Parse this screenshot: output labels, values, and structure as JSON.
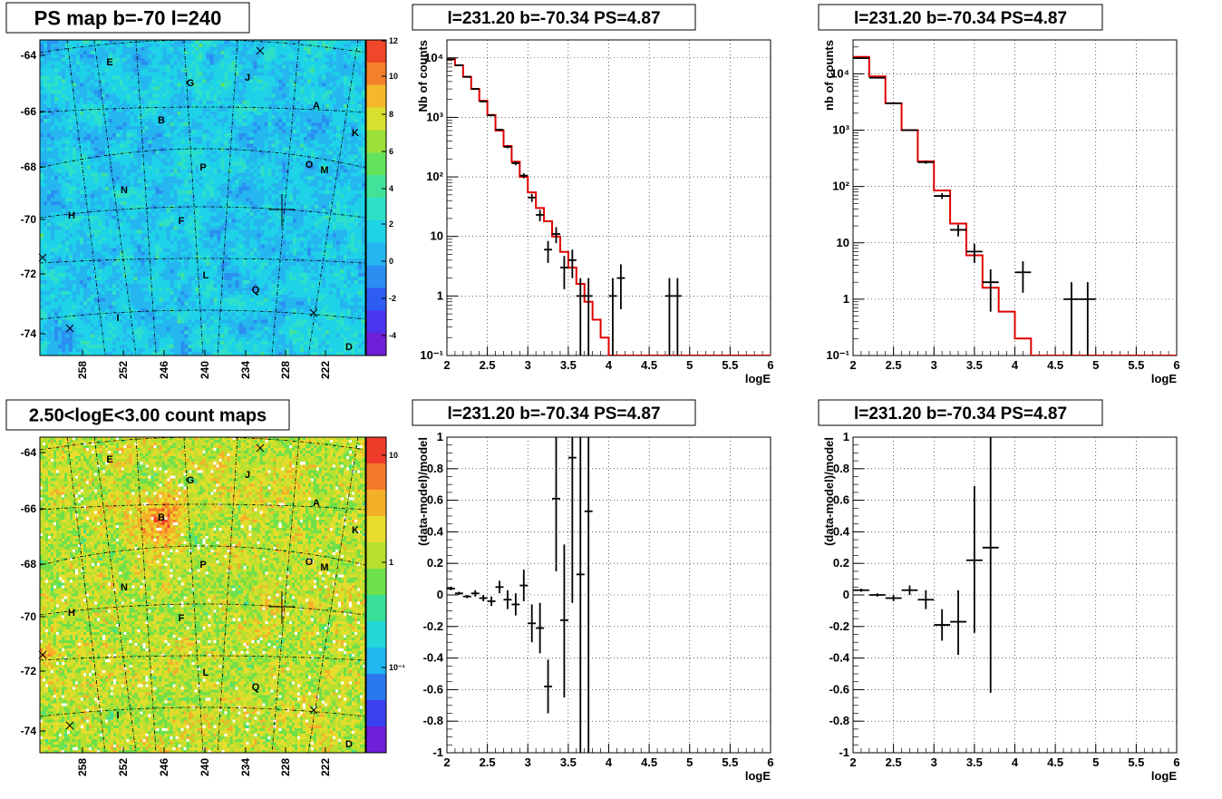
{
  "panels": {
    "map_top": {
      "title": "PS map b=-70 l=240",
      "lat_ticks": [
        "-64",
        "-66",
        "-68",
        "-70",
        "-72",
        "-74"
      ],
      "lon_ticks": [
        "258",
        "252",
        "246",
        "240",
        "234",
        "228",
        "222"
      ],
      "colorbar_ticks": [
        "12",
        "10",
        "8",
        "6",
        "4",
        "2",
        "0",
        "-2",
        "-4"
      ],
      "labels": [
        "E",
        "G",
        "J",
        "A",
        "B",
        "K",
        "P",
        "O",
        "M",
        "N",
        "H",
        "F",
        "L",
        "Q",
        "I",
        "D"
      ]
    },
    "map_bottom": {
      "title": "2.50<logE<3.00 count maps",
      "lat_ticks": [
        "-64",
        "-66",
        "-68",
        "-70",
        "-72",
        "-74"
      ],
      "lon_ticks": [
        "258",
        "252",
        "246",
        "240",
        "234",
        "228",
        "222"
      ],
      "colorbar_ticks": [
        "10",
        "1",
        "10⁻¹"
      ],
      "labels": [
        "E",
        "G",
        "J",
        "A",
        "B",
        "K",
        "P",
        "O",
        "M",
        "N",
        "H",
        "F",
        "L",
        "Q",
        "I",
        "D"
      ]
    }
  },
  "chart_data": [
    {
      "type": "line",
      "panel": "spectrum-left",
      "title": "l=231.20 b=-70.34 PS=4.87",
      "xlabel": "logE",
      "ylabel": "Nb of counts",
      "xlim": [
        2,
        6
      ],
      "ylim": [
        0.1,
        20000
      ],
      "log_y": true,
      "grid": true,
      "x_ticks": [
        "2",
        "2.5",
        "3",
        "3.5",
        "4",
        "4.5",
        "5",
        "5.5",
        "6"
      ],
      "y_ticks": [
        "10⁻¹",
        "1",
        "10",
        "10²",
        "10³",
        "10⁴"
      ],
      "model_edges": [
        2.0,
        2.1,
        2.2,
        2.3,
        2.4,
        2.5,
        2.6,
        2.7,
        2.8,
        2.9,
        3.0,
        3.1,
        3.2,
        3.3,
        3.4,
        3.5,
        3.6,
        3.7,
        3.8,
        3.9,
        4.0,
        6.0
      ],
      "model_values": [
        9500,
        7500,
        4800,
        3000,
        1900,
        1100,
        600,
        330,
        180,
        100,
        55,
        30,
        18,
        10,
        5.5,
        3,
        1.6,
        0.8,
        0.4,
        0.2,
        0.1
      ],
      "data_points": [
        {
          "x": 2.05,
          "y": 9500,
          "lo": 9400,
          "hi": 9600,
          "w": 0.05
        },
        {
          "x": 2.15,
          "y": 7500,
          "lo": 7400,
          "hi": 7600,
          "w": 0.05
        },
        {
          "x": 2.25,
          "y": 4800,
          "lo": 4700,
          "hi": 4900,
          "w": 0.05
        },
        {
          "x": 2.35,
          "y": 3000,
          "lo": 2950,
          "hi": 3050,
          "w": 0.05
        },
        {
          "x": 2.45,
          "y": 1850,
          "lo": 1800,
          "hi": 1900,
          "w": 0.05
        },
        {
          "x": 2.55,
          "y": 1080,
          "lo": 1050,
          "hi": 1110,
          "w": 0.05
        },
        {
          "x": 2.65,
          "y": 620,
          "lo": 595,
          "hi": 645,
          "w": 0.05
        },
        {
          "x": 2.75,
          "y": 320,
          "lo": 302,
          "hi": 338,
          "w": 0.05
        },
        {
          "x": 2.85,
          "y": 170,
          "lo": 157,
          "hi": 183,
          "w": 0.05
        },
        {
          "x": 2.95,
          "y": 105,
          "lo": 95,
          "hi": 115,
          "w": 0.05
        },
        {
          "x": 3.05,
          "y": 45,
          "lo": 38,
          "hi": 52,
          "w": 0.05
        },
        {
          "x": 3.15,
          "y": 23,
          "lo": 18,
          "hi": 28,
          "w": 0.05
        },
        {
          "x": 3.25,
          "y": 6,
          "lo": 3.6,
          "hi": 8.4,
          "w": 0.05
        },
        {
          "x": 3.35,
          "y": 11,
          "lo": 7.7,
          "hi": 14.3,
          "w": 0.05
        },
        {
          "x": 3.45,
          "y": 3,
          "lo": 1.3,
          "hi": 4.7,
          "w": 0.05
        },
        {
          "x": 3.55,
          "y": 4,
          "lo": 2,
          "hi": 6,
          "w": 0.05
        },
        {
          "x": 3.65,
          "y": 1,
          "lo": 0.1,
          "hi": 2,
          "w": 0.05
        },
        {
          "x": 3.75,
          "y": 1,
          "lo": 0.1,
          "hi": 2,
          "w": 0.05
        },
        {
          "x": 4.05,
          "y": 1,
          "lo": 0.1,
          "hi": 2,
          "w": 0.05
        },
        {
          "x": 4.15,
          "y": 2,
          "lo": 0.6,
          "hi": 3.4,
          "w": 0.05
        },
        {
          "x": 4.75,
          "y": 1,
          "lo": 0.1,
          "hi": 2,
          "w": 0.05
        },
        {
          "x": 4.85,
          "y": 1,
          "lo": 0.1,
          "hi": 2,
          "w": 0.05
        }
      ]
    },
    {
      "type": "line",
      "panel": "spectrum-right",
      "title": "l=231.20 b=-70.34 PS=4.87",
      "xlabel": "logE",
      "ylabel": "nb of counts",
      "xlim": [
        2,
        6
      ],
      "ylim": [
        0.1,
        40000
      ],
      "log_y": true,
      "grid": true,
      "x_ticks": [
        "2",
        "2.5",
        "3",
        "3.5",
        "4",
        "4.5",
        "5",
        "5.5",
        "6"
      ],
      "y_ticks": [
        "10⁻¹",
        "1",
        "10",
        "10²",
        "10³",
        "10⁴"
      ],
      "model_edges": [
        2.0,
        2.2,
        2.4,
        2.6,
        2.8,
        3.0,
        3.2,
        3.4,
        3.6,
        3.8,
        4.0,
        4.2,
        6.0
      ],
      "model_values": [
        20000,
        9000,
        3000,
        1000,
        280,
        85,
        22,
        6,
        1.6,
        0.6,
        0.2,
        0.1
      ],
      "data_points": [
        {
          "x": 2.1,
          "y": 19000,
          "lo": 18860,
          "hi": 19140,
          "w": 0.1
        },
        {
          "x": 2.3,
          "y": 8500,
          "lo": 8410,
          "hi": 8590,
          "w": 0.1
        },
        {
          "x": 2.5,
          "y": 3000,
          "lo": 2945,
          "hi": 3055,
          "w": 0.1
        },
        {
          "x": 2.7,
          "y": 1000,
          "lo": 968,
          "hi": 1032,
          "w": 0.1
        },
        {
          "x": 2.9,
          "y": 270,
          "lo": 254,
          "hi": 286,
          "w": 0.1
        },
        {
          "x": 3.1,
          "y": 68,
          "lo": 60,
          "hi": 76,
          "w": 0.1
        },
        {
          "x": 3.3,
          "y": 17,
          "lo": 13,
          "hi": 21,
          "w": 0.1
        },
        {
          "x": 3.5,
          "y": 7,
          "lo": 4.4,
          "hi": 9.6,
          "w": 0.1
        },
        {
          "x": 3.7,
          "y": 2,
          "lo": 0.6,
          "hi": 3.4,
          "w": 0.1
        },
        {
          "x": 4.1,
          "y": 3,
          "lo": 1.3,
          "hi": 4.7,
          "w": 0.1
        },
        {
          "x": 4.7,
          "y": 1,
          "lo": 0.1,
          "hi": 2,
          "w": 0.1
        },
        {
          "x": 4.9,
          "y": 1,
          "lo": 0.1,
          "hi": 2,
          "w": 0.1
        }
      ]
    },
    {
      "type": "scatter",
      "panel": "residual-left",
      "title": "l=231.20 b=-70.34 PS=4.87",
      "xlabel": "logE",
      "ylabel": "(data-model)/model",
      "xlim": [
        2,
        6
      ],
      "ylim": [
        -1,
        1
      ],
      "grid": true,
      "x_ticks": [
        "2",
        "2.5",
        "3",
        "3.5",
        "4",
        "4.5",
        "5",
        "5.5",
        "6"
      ],
      "y_ticks": [
        "-1",
        "-0.8",
        "-0.6",
        "-0.4",
        "-0.2",
        "0",
        "0.2",
        "0.4",
        "0.6",
        "0.8",
        "1"
      ],
      "data_points": [
        {
          "x": 2.05,
          "y": 0.04,
          "lo": 0.03,
          "hi": 0.05,
          "w": 0.05
        },
        {
          "x": 2.15,
          "y": 0.01,
          "lo": 0.0,
          "hi": 0.02,
          "w": 0.05
        },
        {
          "x": 2.25,
          "y": -0.01,
          "lo": -0.02,
          "hi": 0.0,
          "w": 0.05
        },
        {
          "x": 2.35,
          "y": 0.01,
          "lo": -0.01,
          "hi": 0.03,
          "w": 0.05
        },
        {
          "x": 2.45,
          "y": -0.02,
          "lo": -0.04,
          "hi": 0.0,
          "w": 0.05
        },
        {
          "x": 2.55,
          "y": -0.04,
          "lo": -0.07,
          "hi": -0.01,
          "w": 0.05
        },
        {
          "x": 2.65,
          "y": 0.05,
          "lo": 0.01,
          "hi": 0.09,
          "w": 0.05
        },
        {
          "x": 2.75,
          "y": -0.03,
          "lo": -0.09,
          "hi": 0.03,
          "w": 0.05
        },
        {
          "x": 2.85,
          "y": -0.06,
          "lo": -0.13,
          "hi": 0.01,
          "w": 0.05
        },
        {
          "x": 2.95,
          "y": 0.06,
          "lo": -0.04,
          "hi": 0.16,
          "w": 0.05
        },
        {
          "x": 3.05,
          "y": -0.18,
          "lo": -0.3,
          "hi": -0.06,
          "w": 0.05
        },
        {
          "x": 3.15,
          "y": -0.21,
          "lo": -0.37,
          "hi": -0.05,
          "w": 0.05
        },
        {
          "x": 3.25,
          "y": -0.58,
          "lo": -0.75,
          "hi": -0.41,
          "w": 0.05
        },
        {
          "x": 3.35,
          "y": 0.61,
          "lo": 0.15,
          "hi": 1.0,
          "w": 0.05
        },
        {
          "x": 3.45,
          "y": -0.16,
          "lo": -0.65,
          "hi": 0.32,
          "w": 0.05
        },
        {
          "x": 3.55,
          "y": 0.87,
          "lo": -0.05,
          "hi": 1.0,
          "w": 0.05
        },
        {
          "x": 3.65,
          "y": 0.13,
          "lo": -1.0,
          "hi": 1.0,
          "w": 0.05
        },
        {
          "x": 3.75,
          "y": 0.53,
          "lo": -1.0,
          "hi": 1.0,
          "w": 0.05
        }
      ]
    },
    {
      "type": "scatter",
      "panel": "residual-right",
      "title": "l=231.20 b=-70.34 PS=4.87",
      "xlabel": "logE",
      "ylabel": "(data-model)/model",
      "xlim": [
        2,
        6
      ],
      "ylim": [
        -1,
        1
      ],
      "grid": true,
      "x_ticks": [
        "2",
        "2.5",
        "3",
        "3.5",
        "4",
        "4.5",
        "5",
        "5.5",
        "6"
      ],
      "y_ticks": [
        "-1",
        "-0.8",
        "-0.6",
        "-0.4",
        "-0.2",
        "0",
        "0.2",
        "0.4",
        "0.6",
        "0.8",
        "1"
      ],
      "data_points": [
        {
          "x": 2.1,
          "y": 0.03,
          "lo": 0.02,
          "hi": 0.04,
          "w": 0.1
        },
        {
          "x": 2.3,
          "y": 0.0,
          "lo": -0.01,
          "hi": 0.01,
          "w": 0.1
        },
        {
          "x": 2.5,
          "y": -0.02,
          "lo": -0.04,
          "hi": 0.0,
          "w": 0.1
        },
        {
          "x": 2.7,
          "y": 0.03,
          "lo": 0.0,
          "hi": 0.06,
          "w": 0.1
        },
        {
          "x": 2.9,
          "y": -0.03,
          "lo": -0.09,
          "hi": 0.03,
          "w": 0.1
        },
        {
          "x": 3.1,
          "y": -0.19,
          "lo": -0.29,
          "hi": -0.09,
          "w": 0.1
        },
        {
          "x": 3.3,
          "y": -0.17,
          "lo": -0.38,
          "hi": 0.03,
          "w": 0.1
        },
        {
          "x": 3.5,
          "y": 0.22,
          "lo": -0.24,
          "hi": 0.69,
          "w": 0.1
        },
        {
          "x": 3.7,
          "y": 0.3,
          "lo": -0.62,
          "hi": 1.0,
          "w": 0.1
        }
      ]
    }
  ]
}
